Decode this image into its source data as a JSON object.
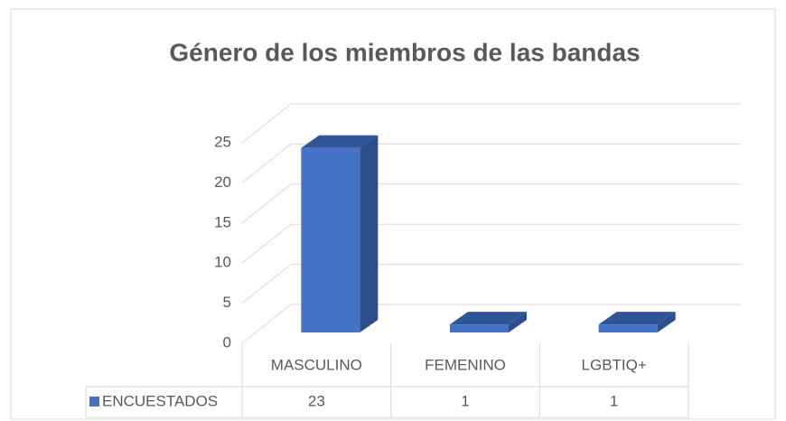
{
  "chart_data": {
    "type": "bar3d",
    "title": "Género  de los miembros de las bandas",
    "categories": [
      "MASCULINO",
      "FEMENINO",
      "LGBTIQ+"
    ],
    "series": [
      {
        "name": "ENCUESTADOS",
        "color": "#4472c4",
        "values": [
          23,
          1,
          1
        ]
      }
    ],
    "ylim": [
      0,
      25
    ],
    "yticks": [
      0,
      5,
      10,
      15,
      20,
      25
    ],
    "grid": true,
    "data_table": true
  }
}
